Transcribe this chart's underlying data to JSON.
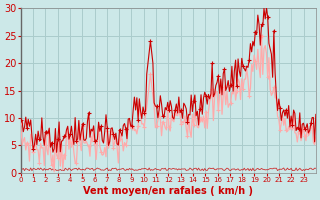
{
  "xlabel": "Vent moyen/en rafales ( km/h )",
  "xlabel_color": "#cc0000",
  "bg_color": "#cce8e8",
  "grid_color": "#aacccc",
  "ylim": [
    0,
    30
  ],
  "yticks": [
    0,
    5,
    10,
    15,
    20,
    25,
    30
  ],
  "xlim": [
    0,
    24
  ],
  "xticks": [
    0,
    1,
    2,
    3,
    4,
    5,
    6,
    7,
    8,
    9,
    10,
    11,
    12,
    13,
    14,
    15,
    16,
    17,
    18,
    19,
    20,
    21,
    22,
    23
  ],
  "mean_color": "#ffaaaa",
  "gust_color": "#cc0000",
  "near_zero_color": "#cc0000",
  "mean_wind_hourly": [
    6,
    5,
    4,
    4,
    5,
    5,
    6,
    5,
    5,
    7,
    10,
    9,
    9,
    10,
    10,
    11,
    13,
    14,
    16,
    18,
    20,
    10,
    8,
    7
  ],
  "gust_wind_hourly": [
    8,
    6,
    5,
    5,
    6,
    6,
    7,
    6,
    6,
    9,
    13,
    12,
    11,
    12,
    12,
    13,
    16,
    17,
    19,
    22,
    26,
    13,
    9,
    8
  ],
  "mean_noise_scale": 1.8,
  "gust_noise_scale": 2.2,
  "mean_seed": 7,
  "gust_seed": 13,
  "near_zero_seed": 99,
  "n_per_hour": 10,
  "marker_step": 5,
  "linewidth_mean": 0.9,
  "linewidth_gust": 0.8,
  "linewidth_near_zero": 0.6,
  "near_zero_base": 0.4,
  "near_zero_range": 0.5
}
